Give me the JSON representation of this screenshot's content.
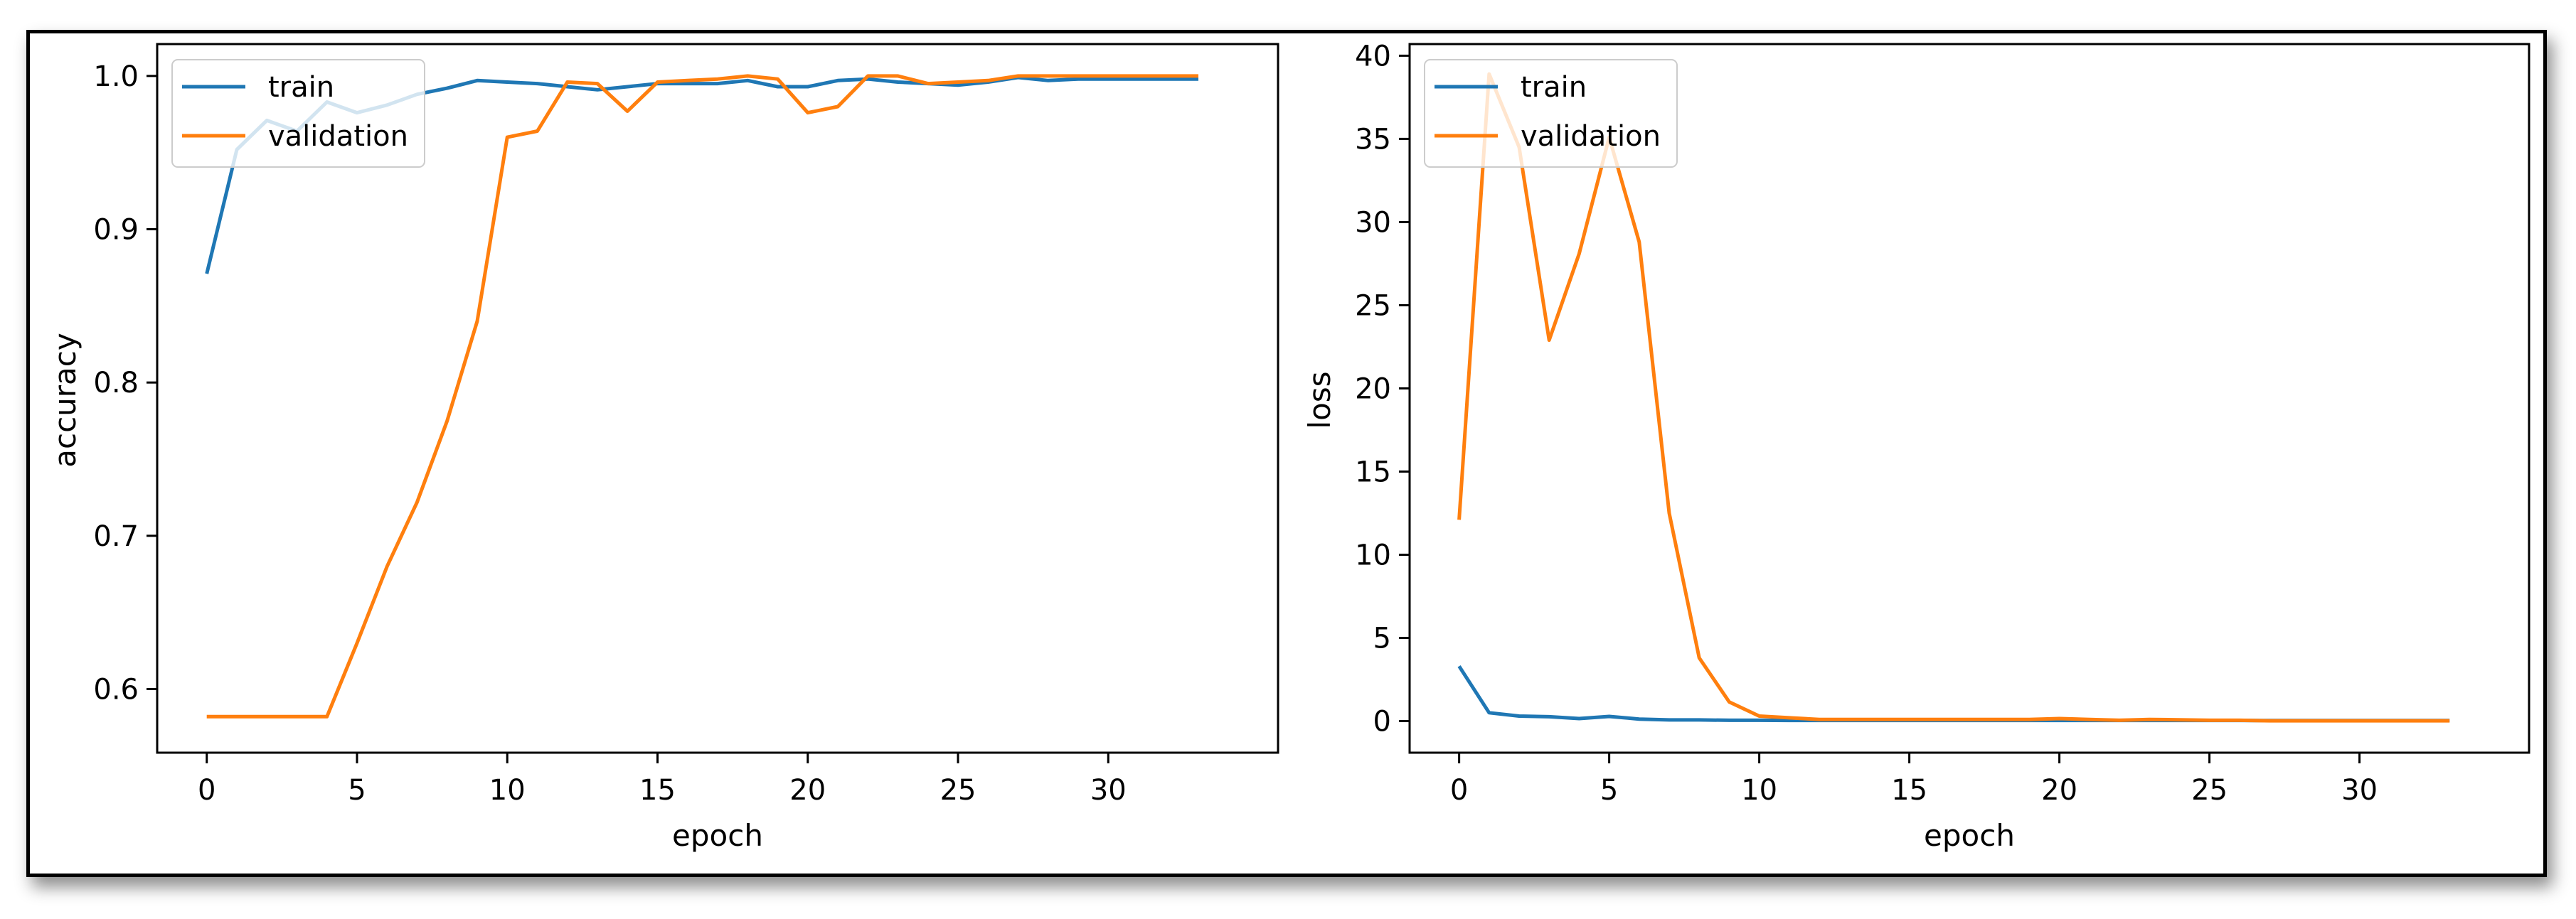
{
  "chart_data": [
    {
      "type": "line",
      "title": "",
      "xlabel": "epoch",
      "ylabel": "accuracy",
      "xlim": [
        -1.65,
        35.65
      ],
      "ylim": [
        0.5585,
        1.0208
      ],
      "xticks": [
        0,
        5,
        10,
        15,
        20,
        25,
        30
      ],
      "xtick_labels": [
        "0",
        "5",
        "10",
        "15",
        "20",
        "25",
        "30"
      ],
      "yticks": [
        0.6,
        0.7,
        0.8,
        0.9,
        1.0
      ],
      "ytick_labels": [
        "0.6",
        "0.7",
        "0.8",
        "0.9",
        "1.0"
      ],
      "grid": false,
      "legend_position": "upper left",
      "x": [
        0,
        1,
        2,
        3,
        4,
        5,
        6,
        7,
        8,
        9,
        10,
        11,
        12,
        13,
        14,
        15,
        16,
        17,
        18,
        19,
        20,
        21,
        22,
        23,
        24,
        25,
        26,
        27,
        28,
        29,
        30,
        31,
        32,
        33
      ],
      "series": [
        {
          "name": "train",
          "color": "#1f77b4",
          "values": [
            0.871,
            0.952,
            0.971,
            0.964,
            0.983,
            0.976,
            0.981,
            0.988,
            0.992,
            0.997,
            0.996,
            0.995,
            0.993,
            0.991,
            0.993,
            0.995,
            0.995,
            0.995,
            0.997,
            0.993,
            0.993,
            0.997,
            0.998,
            0.996,
            0.995,
            0.994,
            0.996,
            0.999,
            0.997,
            0.998,
            0.998,
            0.998,
            0.998,
            0.998
          ]
        },
        {
          "name": "validation",
          "color": "#ff7f0e",
          "values": [
            0.582,
            0.582,
            0.582,
            0.582,
            0.582,
            0.63,
            0.68,
            0.722,
            0.775,
            0.84,
            0.96,
            0.964,
            0.996,
            0.995,
            0.977,
            0.996,
            0.997,
            0.998,
            1.0,
            0.998,
            0.976,
            0.98,
            1.0,
            1.0,
            0.995,
            0.996,
            0.997,
            1.0,
            1.0,
            1.0,
            1.0,
            1.0,
            1.0,
            1.0
          ]
        }
      ]
    },
    {
      "type": "line",
      "title": "",
      "xlabel": "epoch",
      "ylabel": "loss",
      "xlim": [
        -1.65,
        35.65
      ],
      "ylim": [
        -1.9,
        40.7
      ],
      "xticks": [
        0,
        5,
        10,
        15,
        20,
        25,
        30
      ],
      "xtick_labels": [
        "0",
        "5",
        "10",
        "15",
        "20",
        "25",
        "30"
      ],
      "yticks": [
        0,
        5,
        10,
        15,
        20,
        25,
        30,
        35,
        40
      ],
      "ytick_labels": [
        "0",
        "5",
        "10",
        "15",
        "20",
        "25",
        "30",
        "35",
        "40"
      ],
      "grid": false,
      "legend_position": "upper left",
      "x": [
        0,
        1,
        2,
        3,
        4,
        5,
        6,
        7,
        8,
        9,
        10,
        11,
        12,
        13,
        14,
        15,
        16,
        17,
        18,
        19,
        20,
        21,
        22,
        23,
        24,
        25,
        26,
        27,
        28,
        29,
        30,
        31,
        32,
        33
      ],
      "series": [
        {
          "name": "train",
          "color": "#1f77b4",
          "values": [
            3.3,
            0.5,
            0.3,
            0.26,
            0.15,
            0.28,
            0.12,
            0.07,
            0.07,
            0.05,
            0.05,
            0.04,
            0.04,
            0.04,
            0.04,
            0.04,
            0.04,
            0.04,
            0.04,
            0.04,
            0.04,
            0.04,
            0.04,
            0.04,
            0.04,
            0.04,
            0.04,
            0.03,
            0.03,
            0.03,
            0.03,
            0.03,
            0.03,
            0.03
          ]
        },
        {
          "name": "validation",
          "color": "#ff7f0e",
          "values": [
            12.1,
            38.9,
            34.5,
            22.9,
            28.1,
            35.1,
            28.8,
            12.5,
            3.8,
            1.15,
            0.3,
            0.2,
            0.1,
            0.1,
            0.1,
            0.1,
            0.1,
            0.1,
            0.1,
            0.1,
            0.15,
            0.1,
            0.05,
            0.1,
            0.08,
            0.05,
            0.05,
            0.02,
            0.02,
            0.02,
            0.02,
            0.02,
            0.02,
            0.02
          ]
        }
      ]
    }
  ],
  "panels": [
    {
      "ylabel": "accuracy",
      "xlabel": "epoch",
      "legend": [
        "train",
        "validation"
      ]
    },
    {
      "ylabel": "loss",
      "xlabel": "epoch",
      "legend": [
        "train",
        "validation"
      ]
    }
  ]
}
